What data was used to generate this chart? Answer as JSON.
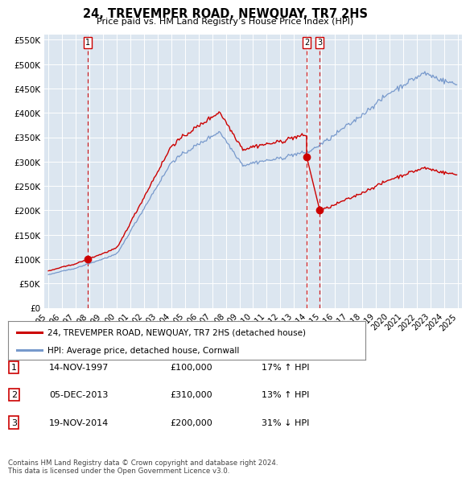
{
  "title": "24, TREVEMPER ROAD, NEWQUAY, TR7 2HS",
  "subtitle": "Price paid vs. HM Land Registry’s House Price Index (HPI)",
  "sale_dates_float": [
    1997.868,
    2013.922,
    2014.884
  ],
  "sale_prices": [
    100000,
    310000,
    200000
  ],
  "sale_labels": [
    "1",
    "2",
    "3"
  ],
  "red_line_color": "#cc0000",
  "blue_line_color": "#7799cc",
  "dot_color": "#cc0000",
  "dashed_line_color": "#cc0000",
  "ylim": [
    0,
    560000
  ],
  "yticks": [
    0,
    50000,
    100000,
    150000,
    200000,
    250000,
    300000,
    350000,
    400000,
    450000,
    500000,
    550000
  ],
  "legend1": "24, TREVEMPER ROAD, NEWQUAY, TR7 2HS (detached house)",
  "legend2": "HPI: Average price, detached house, Cornwall",
  "table_data": [
    [
      "1",
      "14-NOV-1997",
      "£100,000",
      "17% ↑ HPI"
    ],
    [
      "2",
      "05-DEC-2013",
      "£310,000",
      "13% ↑ HPI"
    ],
    [
      "3",
      "19-NOV-2014",
      "£200,000",
      "31% ↓ HPI"
    ]
  ],
  "footer": "Contains HM Land Registry data © Crown copyright and database right 2024.\nThis data is licensed under the Open Government Licence v3.0.",
  "background_color": "#ffffff",
  "plot_bg_color": "#dce6f0"
}
